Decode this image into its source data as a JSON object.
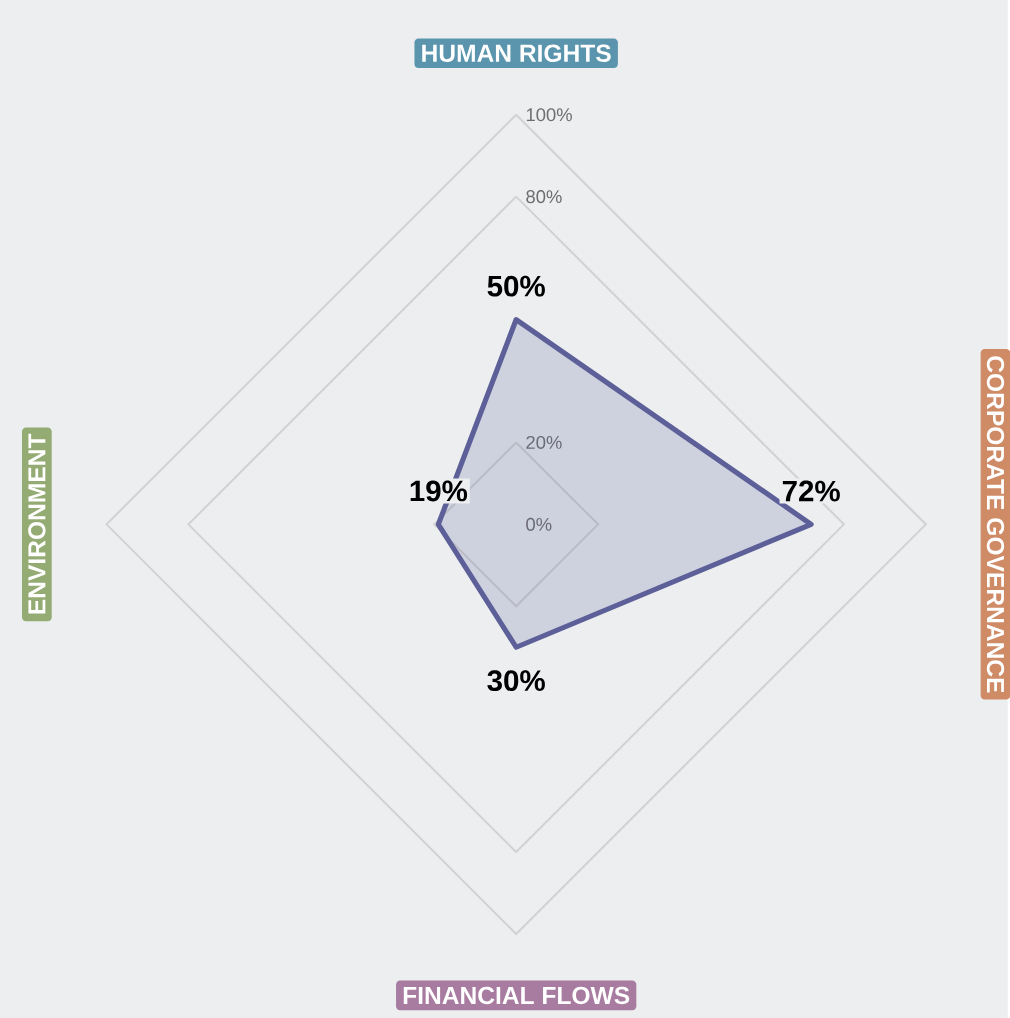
{
  "chart_data": {
    "type": "radar",
    "categories": [
      "HUMAN RIGHTS",
      "CORPORATE GOVERNANCE",
      "FINANCIAL FLOWS",
      "ENVIRONMENT"
    ],
    "colors": [
      "#5b95ad",
      "#cf8a66",
      "#a87ca0",
      "#94ab73"
    ],
    "series": [
      {
        "color": "#5c5f98",
        "values": [
          50,
          72,
          30,
          19
        ],
        "value_labels": [
          "50%",
          "72%",
          "30%",
          "19%"
        ]
      }
    ],
    "ylim": [
      0,
      100
    ],
    "yticks": [
      {
        "value": 0,
        "label": "0%"
      },
      {
        "value": 20,
        "label": "20%"
      },
      {
        "value": 80,
        "label": "80%"
      },
      {
        "value": 100,
        "label": "100%"
      }
    ],
    "grid": true
  }
}
